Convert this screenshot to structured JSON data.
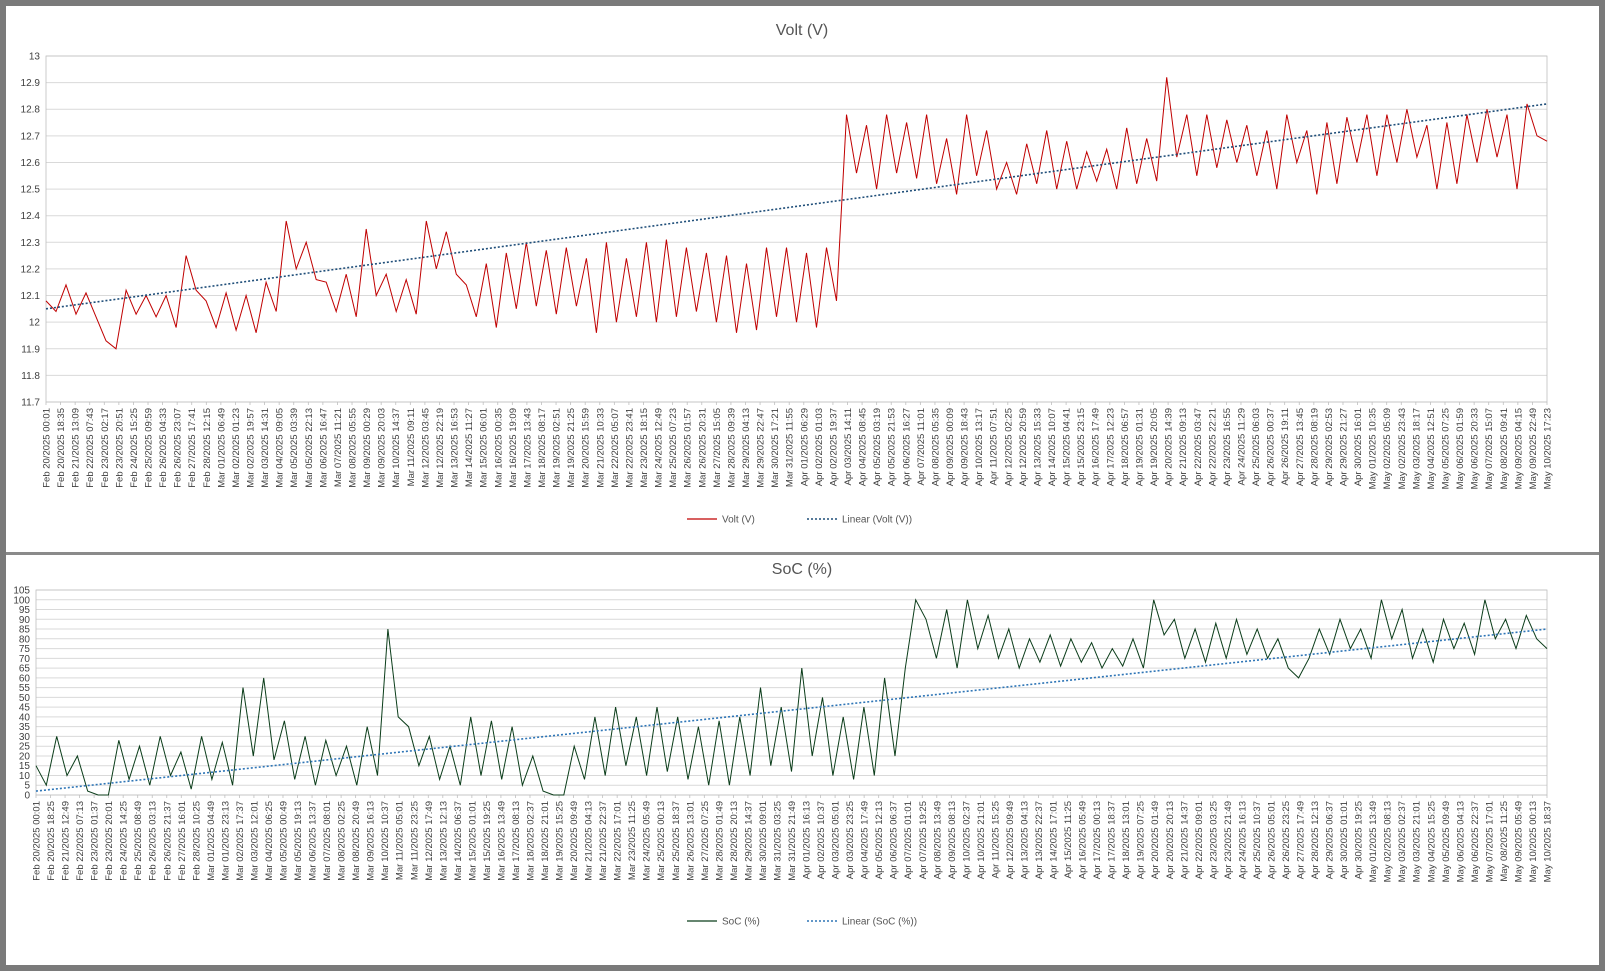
{
  "colors": {
    "volt_series": "#c00000",
    "volt_trend": "#1f4e79",
    "soc_series": "#0b3d1a",
    "soc_trend": "#2e75b6",
    "gridline": "#d9d9d9"
  },
  "chart_data": [
    {
      "type": "line",
      "title": "Volt (V)",
      "xlabel": "",
      "ylabel": "",
      "ylim": [
        11.7,
        13
      ],
      "yticks": [
        11.7,
        11.8,
        11.9,
        12,
        12.1,
        12.2,
        12.3,
        12.4,
        12.5,
        12.6,
        12.7,
        12.8,
        12.9,
        13
      ],
      "ytick_labels": [
        "11.7",
        "11.8",
        "11.9",
        "12",
        "12.1",
        "12.2",
        "12.3",
        "12.4",
        "12.5",
        "12.6",
        "12.7",
        "12.8",
        "12.9",
        "13"
      ],
      "grid": true,
      "legend_position": "bottom",
      "x_tick_labels": [
        "Feb 20/2025 00:01",
        "Feb 20/2025 18:35",
        "Feb 21/2025 13:09",
        "Feb 22/2025 07:43",
        "Feb 23/2025 02:17",
        "Feb 23/2025 20:51",
        "Feb 24/2025 15:25",
        "Feb 25/2025 09:59",
        "Feb 26/2025 04:33",
        "Feb 26/2025 23:07",
        "Feb 27/2025 17:41",
        "Feb 28/2025 12:15",
        "Mar 01/2025 06:49",
        "Mar 02/2025 01:23",
        "Mar 02/2025 19:57",
        "Mar 03/2025 14:31",
        "Mar 04/2025 09:05",
        "Mar 05/2025 03:39",
        "Mar 05/2025 22:13",
        "Mar 06/2025 16:47",
        "Mar 07/2025 11:21",
        "Mar 08/2025 05:55",
        "Mar 09/2025 00:29",
        "Mar 09/2025 20:03",
        "Mar 10/2025 14:37",
        "Mar 11/2025 09:11",
        "Mar 12/2025 03:45",
        "Mar 12/2025 22:19",
        "Mar 13/2025 16:53",
        "Mar 14/2025 11:27",
        "Mar 15/2025 06:01",
        "Mar 16/2025 00:35",
        "Mar 16/2025 19:09",
        "Mar 17/2025 13:43",
        "Mar 18/2025 08:17",
        "Mar 19/2025 02:51",
        "Mar 19/2025 21:25",
        "Mar 20/2025 15:59",
        "Mar 21/2025 10:33",
        "Mar 22/2025 05:07",
        "Mar 22/2025 23:41",
        "Mar 23/2025 18:15",
        "Mar 24/2025 12:49",
        "Mar 25/2025 07:23",
        "Mar 26/2025 01:57",
        "Mar 26/2025 20:31",
        "Mar 27/2025 15:05",
        "Mar 28/2025 09:39",
        "Mar 29/2025 04:13",
        "Mar 29/2025 22:47",
        "Mar 30/2025 17:21",
        "Mar 31/2025 11:55",
        "Apr 01/2025 06:29",
        "Apr 02/2025 01:03",
        "Apr 02/2025 19:37",
        "Apr 03/2025 14:11",
        "Apr 04/2025 08:45",
        "Apr 05/2025 03:19",
        "Apr 05/2025 21:53",
        "Apr 06/2025 16:27",
        "Apr 07/2025 11:01",
        "Apr 08/2025 05:35",
        "Apr 09/2025 00:09",
        "Apr 09/2025 18:43",
        "Apr 10/2025 13:17",
        "Apr 11/2025 07:51",
        "Apr 12/2025 02:25",
        "Apr 12/2025 20:59",
        "Apr 13/2025 15:33",
        "Apr 14/2025 10:07",
        "Apr 15/2025 04:41",
        "Apr 15/2025 23:15",
        "Apr 16/2025 17:49",
        "Apr 17/2025 12:23",
        "Apr 18/2025 06:57",
        "Apr 19/2025 01:31",
        "Apr 19/2025 20:05",
        "Apr 20/2025 14:39",
        "Apr 21/2025 09:13",
        "Apr 22/2025 03:47",
        "Apr 22/2025 22:21",
        "Apr 23/2025 16:55",
        "Apr 24/2025 11:29",
        "Apr 25/2025 06:03",
        "Apr 26/2025 00:37",
        "Apr 26/2025 19:11",
        "Apr 27/2025 13:45",
        "Apr 28/2025 08:19",
        "Apr 29/2025 02:53",
        "Apr 29/2025 21:27",
        "Apr 30/2025 16:01",
        "May 01/2025 10:35",
        "May 02/2025 05:09",
        "May 02/2025 23:43",
        "May 03/2025 18:17",
        "May 04/2025 12:51",
        "May 05/2025 07:25",
        "May 06/2025 01:59",
        "May 06/2025 20:33",
        "May 07/2025 15:07",
        "May 08/2025 09:41",
        "May 09/2025 04:15",
        "May 09/2025 22:49",
        "May 10/2025 17:23"
      ],
      "series": [
        {
          "name": "Volt (V)",
          "values": [
            12.08,
            12.04,
            12.14,
            12.03,
            12.11,
            12.02,
            11.93,
            11.9,
            12.12,
            12.03,
            12.1,
            12.02,
            12.1,
            11.98,
            12.25,
            12.12,
            12.08,
            11.98,
            12.11,
            11.97,
            12.1,
            11.96,
            12.15,
            12.04,
            12.38,
            12.2,
            12.3,
            12.16,
            12.15,
            12.04,
            12.18,
            12.02,
            12.35,
            12.1,
            12.18,
            12.04,
            12.16,
            12.03,
            12.38,
            12.2,
            12.34,
            12.18,
            12.14,
            12.02,
            12.22,
            11.98,
            12.26,
            12.05,
            12.3,
            12.06,
            12.27,
            12.03,
            12.28,
            12.06,
            12.24,
            11.96,
            12.3,
            12.0,
            12.24,
            12.02,
            12.3,
            12.0,
            12.31,
            12.02,
            12.28,
            12.04,
            12.26,
            12.0,
            12.25,
            11.96,
            12.22,
            11.97,
            12.28,
            12.02,
            12.28,
            12.0,
            12.26,
            11.98,
            12.28,
            12.08,
            12.78,
            12.56,
            12.74,
            12.5,
            12.78,
            12.56,
            12.75,
            12.54,
            12.78,
            12.52,
            12.69,
            12.48,
            12.78,
            12.55,
            12.72,
            12.5,
            12.6,
            12.48,
            12.67,
            12.52,
            12.72,
            12.5,
            12.68,
            12.5,
            12.64,
            12.53,
            12.65,
            12.5,
            12.73,
            12.52,
            12.69,
            12.53,
            12.92,
            12.62,
            12.78,
            12.55,
            12.78,
            12.58,
            12.76,
            12.6,
            12.74,
            12.55,
            12.72,
            12.5,
            12.78,
            12.6,
            12.72,
            12.48,
            12.75,
            12.52,
            12.77,
            12.6,
            12.78,
            12.55,
            12.78,
            12.6,
            12.8,
            12.62,
            12.74,
            12.5,
            12.75,
            12.52,
            12.78,
            12.6,
            12.8,
            12.62,
            12.78,
            12.5,
            12.82,
            12.7,
            12.68
          ]
        },
        {
          "name": "Linear (Volt (V))",
          "values": [
            12.05,
            12.82
          ]
        }
      ]
    },
    {
      "type": "line",
      "title": "SoC (%)",
      "xlabel": "",
      "ylabel": "",
      "ylim": [
        0,
        105
      ],
      "yticks": [
        0,
        5,
        10,
        15,
        20,
        25,
        30,
        35,
        40,
        45,
        50,
        55,
        60,
        65,
        70,
        75,
        80,
        85,
        90,
        95,
        100,
        105
      ],
      "ytick_labels": [
        "0",
        "5",
        "10",
        "15",
        "20",
        "25",
        "30",
        "35",
        "40",
        "45",
        "50",
        "55",
        "60",
        "65",
        "70",
        "75",
        "80",
        "85",
        "90",
        "95",
        "100",
        "105"
      ],
      "grid": true,
      "legend_position": "bottom",
      "x_tick_labels": [
        "Feb 20/2025 00:01",
        "Feb 20/2025 18:25",
        "Feb 21/2025 12:49",
        "Feb 22/2025 07:13",
        "Feb 23/2025 01:37",
        "Feb 23/2025 20:01",
        "Feb 24/2025 14:25",
        "Feb 25/2025 08:49",
        "Feb 26/2025 03:13",
        "Feb 26/2025 21:37",
        "Feb 27/2025 16:01",
        "Feb 28/2025 10:25",
        "Mar 01/2025 04:49",
        "Mar 01/2025 23:13",
        "Mar 02/2025 17:37",
        "Mar 03/2025 12:01",
        "Mar 04/2025 06:25",
        "Mar 05/2025 00:49",
        "Mar 05/2025 19:13",
        "Mar 06/2025 13:37",
        "Mar 07/2025 08:01",
        "Mar 08/2025 02:25",
        "Mar 08/2025 20:49",
        "Mar 09/2025 16:13",
        "Mar 10/2025 10:37",
        "Mar 11/2025 05:01",
        "Mar 11/2025 23:25",
        "Mar 12/2025 17:49",
        "Mar 13/2025 12:13",
        "Mar 14/2025 06:37",
        "Mar 15/2025 01:01",
        "Mar 15/2025 19:25",
        "Mar 16/2025 13:49",
        "Mar 17/2025 08:13",
        "Mar 18/2025 02:37",
        "Mar 18/2025 21:01",
        "Mar 19/2025 15:25",
        "Mar 20/2025 09:49",
        "Mar 21/2025 04:13",
        "Mar 21/2025 22:37",
        "Mar 22/2025 17:01",
        "Mar 23/2025 11:25",
        "Mar 24/2025 05:49",
        "Mar 25/2025 00:13",
        "Mar 25/2025 18:37",
        "Mar 26/2025 13:01",
        "Mar 27/2025 07:25",
        "Mar 28/2025 01:49",
        "Mar 28/2025 20:13",
        "Mar 29/2025 14:37",
        "Mar 30/2025 09:01",
        "Mar 31/2025 03:25",
        "Mar 31/2025 21:49",
        "Apr 01/2025 16:13",
        "Apr 02/2025 10:37",
        "Apr 03/2025 05:01",
        "Apr 03/2025 23:25",
        "Apr 04/2025 17:49",
        "Apr 05/2025 12:13",
        "Apr 06/2025 06:37",
        "Apr 07/2025 01:01",
        "Apr 07/2025 19:25",
        "Apr 08/2025 13:49",
        "Apr 09/2025 08:13",
        "Apr 10/2025 02:37",
        "Apr 10/2025 21:01",
        "Apr 11/2025 15:25",
        "Apr 12/2025 09:49",
        "Apr 13/2025 04:13",
        "Apr 13/2025 22:37",
        "Apr 14/2025 17:01",
        "Apr 15/2025 11:25",
        "Apr 16/2025 05:49",
        "Apr 17/2025 00:13",
        "Apr 17/2025 18:37",
        "Apr 18/2025 13:01",
        "Apr 19/2025 07:25",
        "Apr 20/2025 01:49",
        "Apr 20/2025 20:13",
        "Apr 21/2025 14:37",
        "Apr 22/2025 09:01",
        "Apr 23/2025 03:25",
        "Apr 23/2025 21:49",
        "Apr 24/2025 16:13",
        "Apr 25/2025 10:37",
        "Apr 26/2025 05:01",
        "Apr 26/2025 23:25",
        "Apr 27/2025 17:49",
        "Apr 28/2025 12:13",
        "Apr 29/2025 06:37",
        "Apr 30/2025 01:01",
        "Apr 30/2025 19:25",
        "May 01/2025 13:49",
        "May 02/2025 08:13",
        "May 03/2025 02:37",
        "May 03/2025 21:01",
        "May 04/2025 15:25",
        "May 05/2025 09:49",
        "May 06/2025 04:13",
        "May 06/2025 22:37",
        "May 07/2025 17:01",
        "May 08/2025 11:25",
        "May 09/2025 05:49",
        "May 10/2025 00:13",
        "May 10/2025 18:37"
      ],
      "series": [
        {
          "name": "SoC (%)",
          "values": [
            15,
            5,
            30,
            10,
            20,
            2,
            0,
            0,
            28,
            8,
            25,
            5,
            30,
            10,
            22,
            3,
            30,
            8,
            27,
            5,
            55,
            20,
            60,
            18,
            38,
            8,
            30,
            5,
            28,
            10,
            25,
            5,
            35,
            10,
            85,
            40,
            35,
            15,
            30,
            8,
            25,
            5,
            40,
            10,
            38,
            8,
            35,
            5,
            20,
            2,
            0,
            0,
            25,
            8,
            40,
            10,
            45,
            15,
            40,
            10,
            45,
            12,
            40,
            8,
            35,
            5,
            38,
            5,
            40,
            10,
            55,
            15,
            45,
            12,
            65,
            20,
            50,
            10,
            40,
            8,
            45,
            10,
            60,
            20,
            65,
            100,
            90,
            70,
            95,
            65,
            100,
            75,
            92,
            70,
            85,
            65,
            80,
            68,
            82,
            66,
            80,
            68,
            78,
            65,
            75,
            66,
            80,
            65,
            100,
            82,
            90,
            70,
            85,
            68,
            88,
            70,
            90,
            72,
            85,
            70,
            80,
            65,
            60,
            70,
            85,
            72,
            90,
            75,
            85,
            70,
            100,
            80,
            95,
            70,
            85,
            68,
            90,
            75,
            88,
            72,
            100,
            80,
            90,
            75,
            92,
            80,
            75
          ]
        },
        {
          "name": "Linear (SoC (%))",
          "values": [
            2,
            85
          ]
        }
      ]
    }
  ]
}
